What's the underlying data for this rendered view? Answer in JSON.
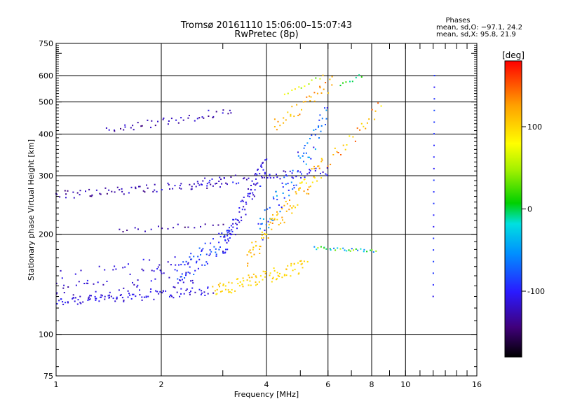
{
  "chart_data": {
    "type": "scatter",
    "title": "Tromsø 20161110 15:06:00–15:07:43",
    "subtitle": "RwPretec (8p)",
    "xlabel": "Frequency [MHz]",
    "ylabel": "Stationary phase Virtual Height [km]",
    "xscale": "log",
    "yscale": "log",
    "xlim": [
      1,
      16
    ],
    "ylim": [
      75,
      750
    ],
    "x_ticks": [
      1,
      2,
      4,
      6,
      8,
      10,
      16
    ],
    "y_ticks": [
      75,
      100,
      200,
      300,
      400,
      500,
      600,
      750
    ],
    "grid": true,
    "phase_header": "Phases",
    "phase_stats": [
      "mean, sd,O: −97.1, 24.2",
      "mean, sd,X:  95.8, 21.9"
    ],
    "colorbar": {
      "label": "[deg]",
      "range": [
        -180,
        180
      ],
      "ticks": [
        100,
        0,
        -100
      ]
    },
    "series": [
      {
        "traces": [
          {
            "f0": 1.0,
            "f1": 2.8,
            "h0": 125,
            "h1": 135,
            "ph0": -120,
            "ph1": -100,
            "n": 90,
            "spreadH": 0.03
          },
          {
            "f0": 1.0,
            "f1": 2.5,
            "h0": 140,
            "h1": 155,
            "ph0": -125,
            "ph1": -105,
            "n": 90,
            "spreadH": 0.12
          },
          {
            "f0": 1.0,
            "f1": 3.0,
            "h0": 262,
            "h1": 285,
            "ph0": -140,
            "ph1": -110,
            "n": 70,
            "spreadH": 0.03
          },
          {
            "f0": 1.4,
            "f1": 3.2,
            "h0": 410,
            "h1": 470,
            "ph0": -140,
            "ph1": -110,
            "n": 45,
            "spreadH": 0.03
          },
          {
            "f0": 2.5,
            "f1": 6.0,
            "h0": 285,
            "h1": 310,
            "ph0": -125,
            "ph1": -95,
            "n": 60,
            "spreadH": 0.03
          },
          {
            "f0": 1.5,
            "f1": 3.0,
            "h0": 205,
            "h1": 215,
            "ph0": -140,
            "ph1": -120,
            "n": 20,
            "spreadH": 0.02
          },
          {
            "f0": 2.2,
            "f1": 3.2,
            "h0": 150,
            "h1": 200,
            "ph0": -105,
            "ph1": -70,
            "n": 70,
            "spreadH": 0.08
          },
          {
            "f0": 3.0,
            "f1": 4.0,
            "h0": 180,
            "h1": 330,
            "ph0": -120,
            "ph1": -95,
            "n": 80,
            "spreadH": 0.08
          },
          {
            "f0": 3.8,
            "f1": 6.0,
            "h0": 200,
            "h1": 450,
            "ph0": -110,
            "ph1": -40,
            "n": 80,
            "spreadH": 0.1
          },
          {
            "f0": 2.8,
            "f1": 5.2,
            "h0": 135,
            "h1": 160,
            "ph0": 90,
            "ph1": 110,
            "n": 90,
            "spreadH": 0.05
          },
          {
            "f0": 3.5,
            "f1": 5.8,
            "h0": 170,
            "h1": 320,
            "ph0": 90,
            "ph1": 135,
            "n": 90,
            "spreadH": 0.07
          },
          {
            "f0": 4.2,
            "f1": 6.2,
            "h0": 420,
            "h1": 570,
            "ph0": 100,
            "ph1": 145,
            "n": 35,
            "spreadH": 0.05
          },
          {
            "f0": 5.5,
            "f1": 8.2,
            "h0": 182,
            "h1": 178,
            "ph0": -80,
            "ph1": 60,
            "n": 30,
            "spreadH": 0.01
          },
          {
            "f0": 6.0,
            "f1": 8.5,
            "h0": 330,
            "h1": 480,
            "ph0": 90,
            "ph1": 150,
            "n": 25,
            "spreadH": 0.05
          },
          {
            "f0": 12.0,
            "f1": 12.1,
            "h0": 130,
            "h1": 600,
            "ph0": -100,
            "ph1": -90,
            "n": 20,
            "spreadH": 0.0
          },
          {
            "f0": 6.5,
            "f1": 7.5,
            "h0": 570,
            "h1": 600,
            "ph0": -20,
            "ph1": 20,
            "n": 8,
            "spreadH": 0.02
          },
          {
            "f0": 4.5,
            "f1": 5.8,
            "h0": 530,
            "h1": 590,
            "ph0": 20,
            "ph1": 120,
            "n": 12,
            "spreadH": 0.02
          }
        ]
      }
    ]
  }
}
